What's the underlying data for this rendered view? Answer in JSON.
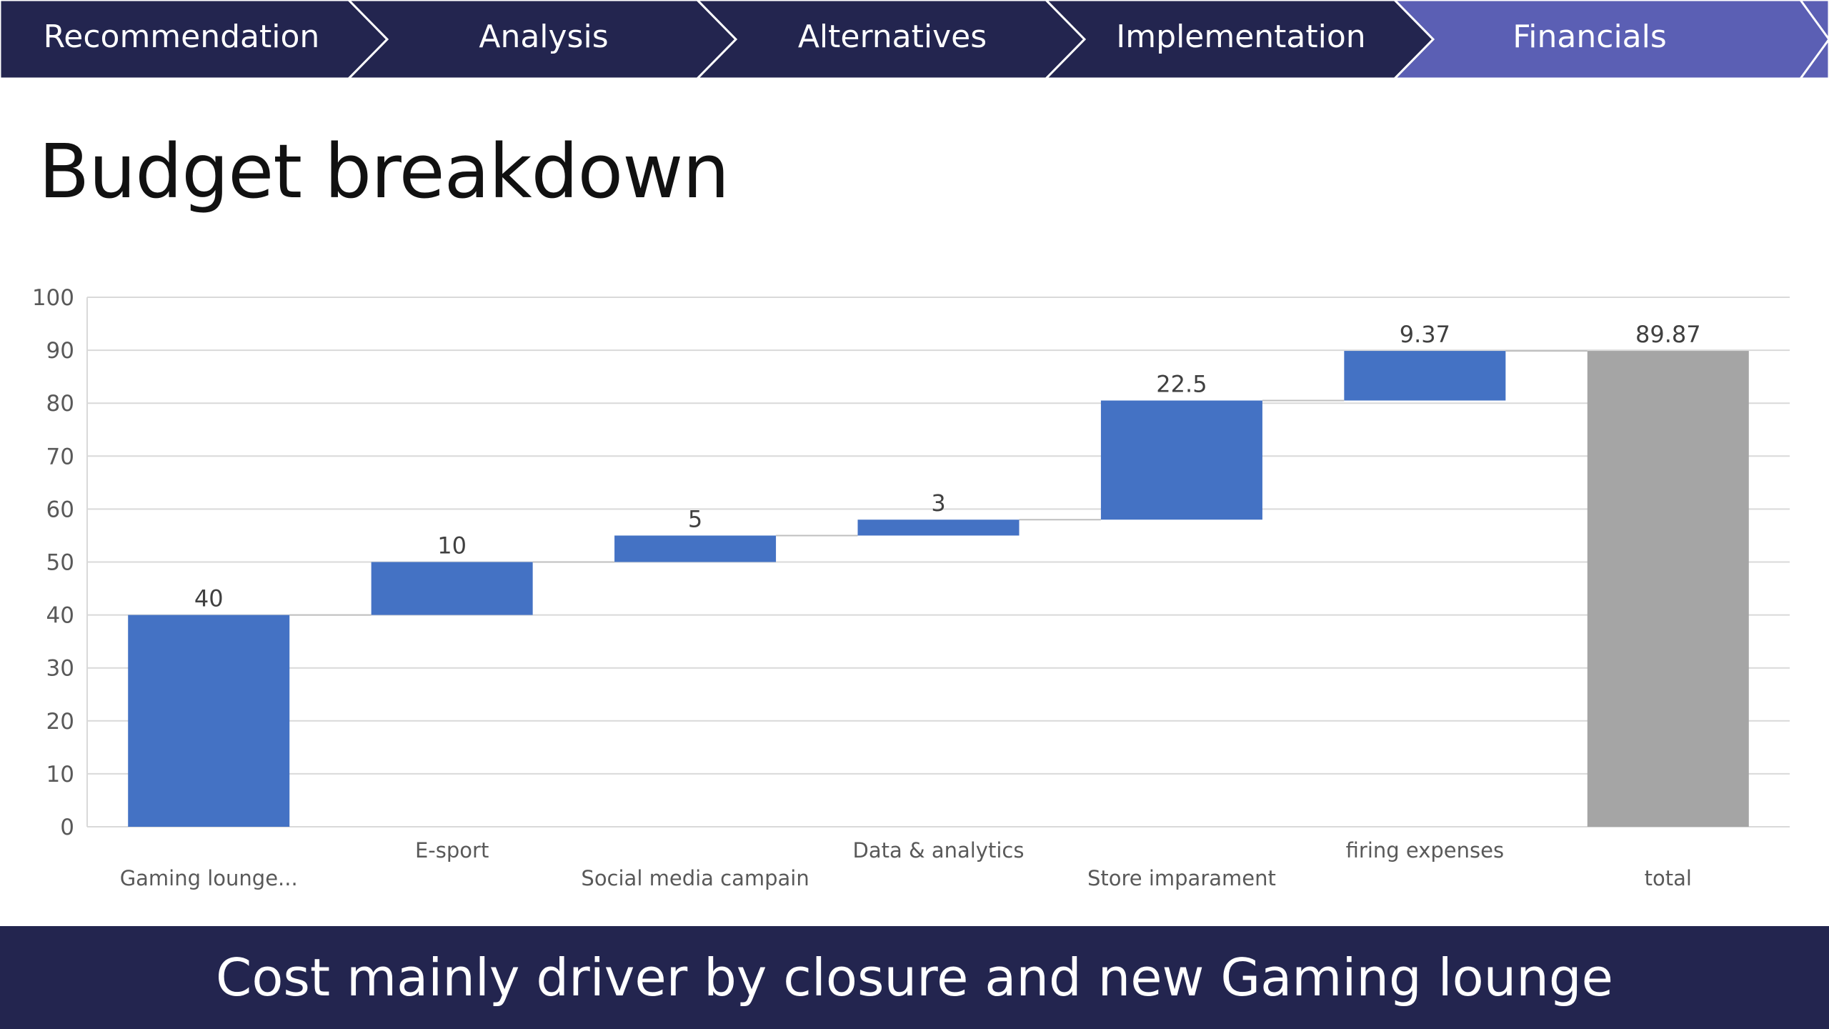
{
  "nav": {
    "tabs": [
      {
        "label": "Recommendation",
        "active": false
      },
      {
        "label": "Analysis",
        "active": false
      },
      {
        "label": "Alternatives",
        "active": false
      },
      {
        "label": "Implementation",
        "active": false
      },
      {
        "label": "Financials",
        "active": true
      }
    ],
    "colors": {
      "inactive": "#23254f",
      "active": "#5b5fb4",
      "separator": "#ffffff",
      "text": "#ffffff"
    }
  },
  "title": "Budget breakdown",
  "chart_data": {
    "type": "bar",
    "subtype": "waterfall",
    "categories": [
      "Gaming lounge...",
      "E-sport",
      "Social media campain",
      "Data & analytics",
      "Store imparament",
      "firing expenses",
      "total"
    ],
    "series": [
      {
        "values": [
          40,
          10,
          5,
          3,
          22.5,
          9.37,
          89.87
        ]
      }
    ],
    "data_labels": [
      "40",
      "10",
      "5",
      "3",
      "22.5",
      "9.37",
      "89.87"
    ],
    "is_total": [
      false,
      false,
      false,
      false,
      false,
      false,
      true
    ],
    "ylim": [
      0,
      100
    ],
    "yticks": [
      0,
      10,
      20,
      30,
      40,
      50,
      60,
      70,
      80,
      90,
      100
    ],
    "grid": true,
    "legend": "none",
    "colors": {
      "increase": "#4472c4",
      "total": "#a5a5a5",
      "grid": "#d9d9d9",
      "text": "#404040",
      "label": "#595959"
    }
  },
  "footer": {
    "text": "Cost mainly driver by closure and new Gaming lounge"
  }
}
